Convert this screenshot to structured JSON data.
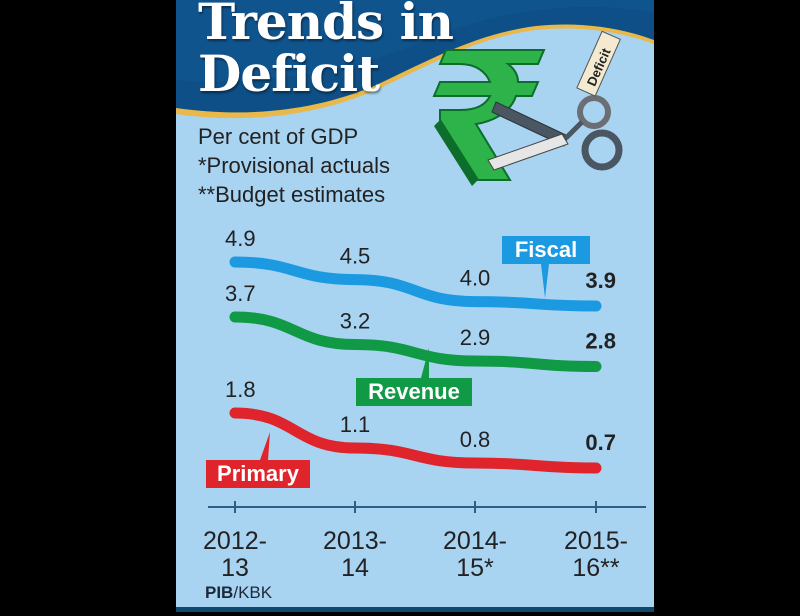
{
  "header": {
    "title_line1": "Trends in",
    "title_line2": "Deficit",
    "illustration": "rupee-symbol-cut-by-scissors-icon",
    "tag_text": "Deficit"
  },
  "notes": [
    "Per cent of GDP",
    "*Provisional actuals",
    "**Budget estimates"
  ],
  "credit": {
    "org": "PIB",
    "sep": "/",
    "agency": "KBK"
  },
  "colors": {
    "background": "#a8d3f1",
    "header": "#0d4f86",
    "accent_gold": "#e8b84a",
    "fiscal": "#1b9ae2",
    "revenue": "#109a45",
    "primary": "#e0242b"
  },
  "chart_data": {
    "type": "line",
    "title": "Trends in Deficit",
    "subtitle": "Per cent of GDP",
    "xlabel": "",
    "ylabel": "Per cent of GDP",
    "categories": [
      [
        "2012-",
        "13"
      ],
      [
        "2013-",
        "14"
      ],
      [
        "2014-",
        "15*"
      ],
      [
        "2015-",
        "16**"
      ]
    ],
    "category_labels": [
      "2012-13",
      "2013-14",
      "2014-15*",
      "2015-16**"
    ],
    "series": [
      {
        "name": "Fiscal",
        "values": [
          4.9,
          4.5,
          4.0,
          3.9
        ],
        "labels": [
          "4.9",
          "4.5",
          "4.0",
          "3.9"
        ]
      },
      {
        "name": "Revenue",
        "values": [
          3.7,
          3.2,
          2.9,
          2.8
        ],
        "labels": [
          "3.7",
          "3.2",
          "2.9",
          "2.8"
        ]
      },
      {
        "name": "Primary",
        "values": [
          1.8,
          1.1,
          0.8,
          0.7
        ],
        "labels": [
          "1.8",
          "1.1",
          "0.8",
          "0.7"
        ]
      }
    ],
    "footnotes": [
      "*Provisional actuals",
      "**Budget estimates"
    ],
    "grid": false,
    "legend": "inline-callouts"
  }
}
